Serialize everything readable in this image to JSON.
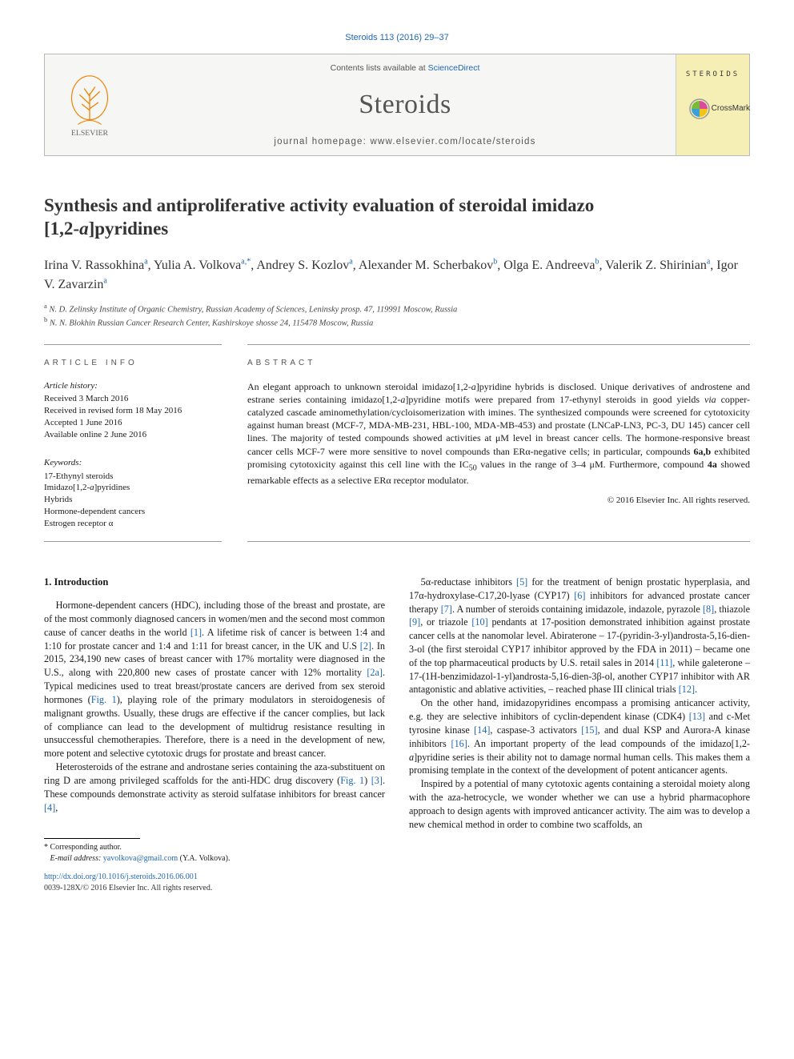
{
  "citation": "Steroids 113 (2016) 29–37",
  "banner": {
    "contents_prefix": "Contents lists available at ",
    "contents_link": "ScienceDirect",
    "journal": "Steroids",
    "homepage_label": "journal homepage: ",
    "homepage_url": "www.elsevier.com/locate/steroids",
    "cover_label": "STEROIDS"
  },
  "crossmark": "CrossMark",
  "title_line1": "Synthesis and antiproliferative activity evaluation of steroidal imidazo",
  "title_line2": "[1,2-a]pyridines",
  "authors_html": "Irina V. Rassokhina<sup>a</sup>, Yulia A. Volkova<sup>a,*</sup>, Andrey S. Kozlov<sup>a</sup>, Alexander M. Scherbakov<sup>b</sup>, Olga E. Andreeva<sup>b</sup>, Valerik Z. Shirinian<sup>a</sup>, Igor V. Zavarzin<sup>a</sup>",
  "affiliations": {
    "a": "N. D. Zelinsky Institute of Organic Chemistry, Russian Academy of Sciences, Leninsky prosp. 47, 119991 Moscow, Russia",
    "b": "N. N. Blokhin Russian Cancer Research Center, Kashirskoye shosse 24, 115478 Moscow, Russia"
  },
  "info_head": "ARTICLE INFO",
  "abs_head": "ABSTRACT",
  "history_head": "Article history:",
  "history": [
    "Received 3 March 2016",
    "Received in revised form 18 May 2016",
    "Accepted 1 June 2016",
    "Available online 2 June 2016"
  ],
  "keywords_head": "Keywords:",
  "keywords": [
    "17-Ethynyl steroids",
    "Imidazo[1,2-a]pyridines",
    "Hybrids",
    "Hormone-dependent cancers",
    "Estrogen receptor α"
  ],
  "abstract": "An elegant approach to unknown steroidal imidazo[1,2-a]pyridine hybrids is disclosed. Unique derivatives of androstene and estrane series containing imidazo[1,2-a]pyridine motifs were prepared from 17-ethynyl steroids in good yields via copper-catalyzed cascade aminomethylation/cycloisomerization with imines. The synthesized compounds were screened for cytotoxicity against human breast (MCF-7, MDA-MB-231, HBL-100, MDA-MB-453) and prostate (LNCaP-LN3, PC-3, DU 145) cancer cell lines. The majority of tested compounds showed activities at μM level in breast cancer cells. The hormone-responsive breast cancer cells MCF-7 were more sensitive to novel compounds than ERα-negative cells; in particular, compounds 6a,b exhibited promising cytotoxicity against this cell line with the IC50 values in the range of 3–4 μM. Furthermore, compound 4a showed remarkable effects as a selective ERα receptor modulator.",
  "copyright": "© 2016 Elsevier Inc. All rights reserved.",
  "section1_head": "1. Introduction",
  "col_left": {
    "p1": "Hormone-dependent cancers (HDC), including those of the breast and prostate, are of the most commonly diagnosed cancers in women/men and the second most common cause of cancer deaths in the world [1]. A lifetime risk of cancer is between 1:4 and 1:10 for prostate cancer and 1:4 and 1:11 for breast cancer, in the UK and U.S [2]. In 2015, 234,190 new cases of breast cancer with 17% mortality were diagnosed in the U.S., along with 220,800 new cases of prostate cancer with 12% mortality [2a]. Typical medicines used to treat breast/prostate cancers are derived from sex steroid hormones (Fig. 1), playing role of the primary modulators in steroidogenesis of malignant growths. Usually, these drugs are effective if the cancer complies, but lack of compliance can lead to the development of multidrug resistance resulting in unsuccessful chemotherapies. Therefore, there is a need in the development of new, more potent and selective cytotoxic drugs for prostate and breast cancer.",
    "p2": "Heterosteroids of the estrane and androstane series containing the aza-substituent on ring D are among privileged scaffolds for the anti-HDC drug discovery (Fig. 1) [3]. These compounds demonstrate activity as steroid sulfatase inhibitors for breast cancer [4],"
  },
  "col_right": {
    "p1": "5α-reductase inhibitors [5] for the treatment of benign prostatic hyperplasia, and 17α-hydroxylase-C17,20-lyase (CYP17) [6] inhibitors for advanced prostate cancer therapy [7]. A number of steroids containing imidazole, indazole, pyrazole [8], thiazole [9], or triazole [10] pendants at 17-position demonstrated inhibition against prostate cancer cells at the nanomolar level. Abiraterone – 17-(pyridin-3-yl)androsta-5,16-dien-3-ol (the first steroidal CYP17 inhibitor approved by the FDA in 2011) – became one of the top pharmaceutical products by U.S. retail sales in 2014 [11], while galeterone – 17-(1H-benzimidazol-1-yl)androsta-5,16-dien-3β-ol, another CYP17 inhibitor with AR antagonistic and ablative activities, – reached phase III clinical trials [12].",
    "p2": "On the other hand, imidazopyridines encompass a promising anticancer activity, e.g. they are selective inhibitors of cyclin-dependent kinase (CDK4) [13] and c-Met tyrosine kinase [14], caspase-3 activators [15], and dual KSP and Aurora-A kinase inhibitors [16]. An important property of the lead compounds of the imidazo[1,2-a]pyridine series is their ability not to damage normal human cells. This makes them a promising template in the context of the development of potent anticancer agents.",
    "p3": "Inspired by a potential of many cytotoxic agents containing a steroidal moiety along with the aza-hetrocycle, we wonder whether we can use a hybrid pharmacophore approach to design agents with improved anticancer activity. The aim was to develop a new chemical method in order to combine two scaffolds, an"
  },
  "corresponding": {
    "star": "* Corresponding author.",
    "email_label": "E-mail address: ",
    "email": "yavolkova@gmail.com",
    "email_name": " (Y.A. Volkova)."
  },
  "doi": "http://dx.doi.org/10.1016/j.steroids.2016.06.001",
  "issn_line": "0039-128X/© 2016 Elsevier Inc. All rights reserved.",
  "colors": {
    "link": "#2067b3",
    "text": "#1a1a1a",
    "banner_bg": "#f6f6f4",
    "cover_bg": "#f5efb6",
    "elsevier_orange": "#ef8200"
  }
}
